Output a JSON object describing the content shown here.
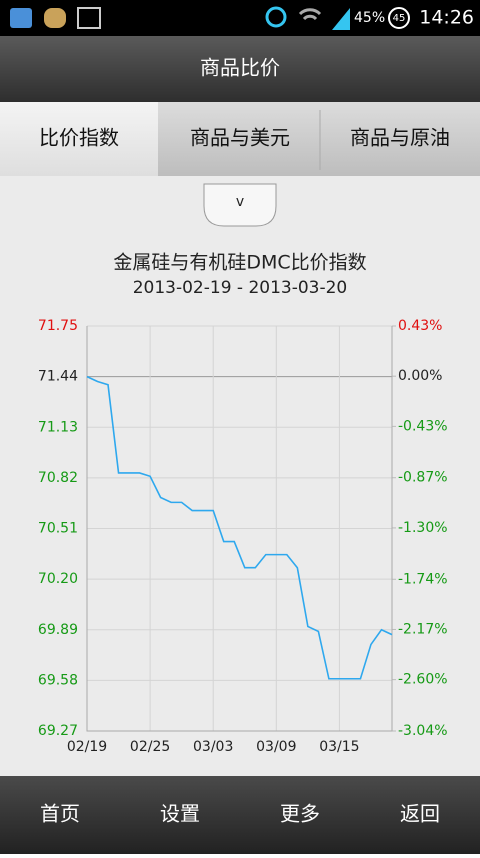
{
  "status_bar": {
    "battery": "45%",
    "badge": "45",
    "time": "14:26"
  },
  "header": {
    "title": "商品比价"
  },
  "tabs": [
    "比价指数",
    "商品与美元",
    "商品与原油"
  ],
  "dropdown": "v",
  "chart_data": {
    "type": "line",
    "title": "金属硅与有机硅DMC比价指数",
    "subtitle": "2013-02-19 - 2013-03-20",
    "categories": [
      "02/19",
      null,
      null,
      null,
      null,
      null,
      "02/25",
      null,
      null,
      null,
      null,
      null,
      "03/03",
      null,
      null,
      null,
      null,
      null,
      "03/09",
      null,
      null,
      null,
      null,
      null,
      "03/15",
      null,
      null,
      null,
      null,
      null
    ],
    "values": [
      71.44,
      71.41,
      71.39,
      70.85,
      70.85,
      70.85,
      70.83,
      70.7,
      70.67,
      70.67,
      70.62,
      70.62,
      70.62,
      70.43,
      70.43,
      70.27,
      70.27,
      70.35,
      70.35,
      70.35,
      70.27,
      69.91,
      69.88,
      69.59,
      69.59,
      69.59,
      69.59,
      69.8,
      69.89,
      69.86
    ],
    "color": "#2ea8ee",
    "ylim": [
      69.27,
      71.75
    ],
    "yticks": [
      71.75,
      71.44,
      71.13,
      70.82,
      70.51,
      {
        "value": 70.2,
        "label": "70.20"
      },
      69.89,
      69.58,
      69.27
    ],
    "y2lim": [
      -3.04,
      0.43
    ],
    "y2ticks": [
      {
        "value": 0.43,
        "label": "0.43%"
      },
      {
        "value": 0,
        "label": "0.00%"
      },
      {
        "value": -0.43,
        "label": "-0.43%"
      },
      {
        "value": -0.87,
        "label": "-0.87%"
      },
      {
        "value": -1.3,
        "label": "-1.30%"
      },
      {
        "value": -1.74,
        "label": "-1.74%"
      },
      {
        "value": -2.17,
        "label": "-2.17%"
      },
      {
        "value": -2.6,
        "label": "-2.60%"
      },
      {
        "value": -3.04,
        "label": "-3.04%"
      }
    ],
    "tick_colors": {
      "up": "#e01010",
      "flat": "#222222",
      "down": "#169a16"
    },
    "grid": true
  },
  "nav": [
    "首页",
    "设置",
    "更多",
    "返回"
  ]
}
